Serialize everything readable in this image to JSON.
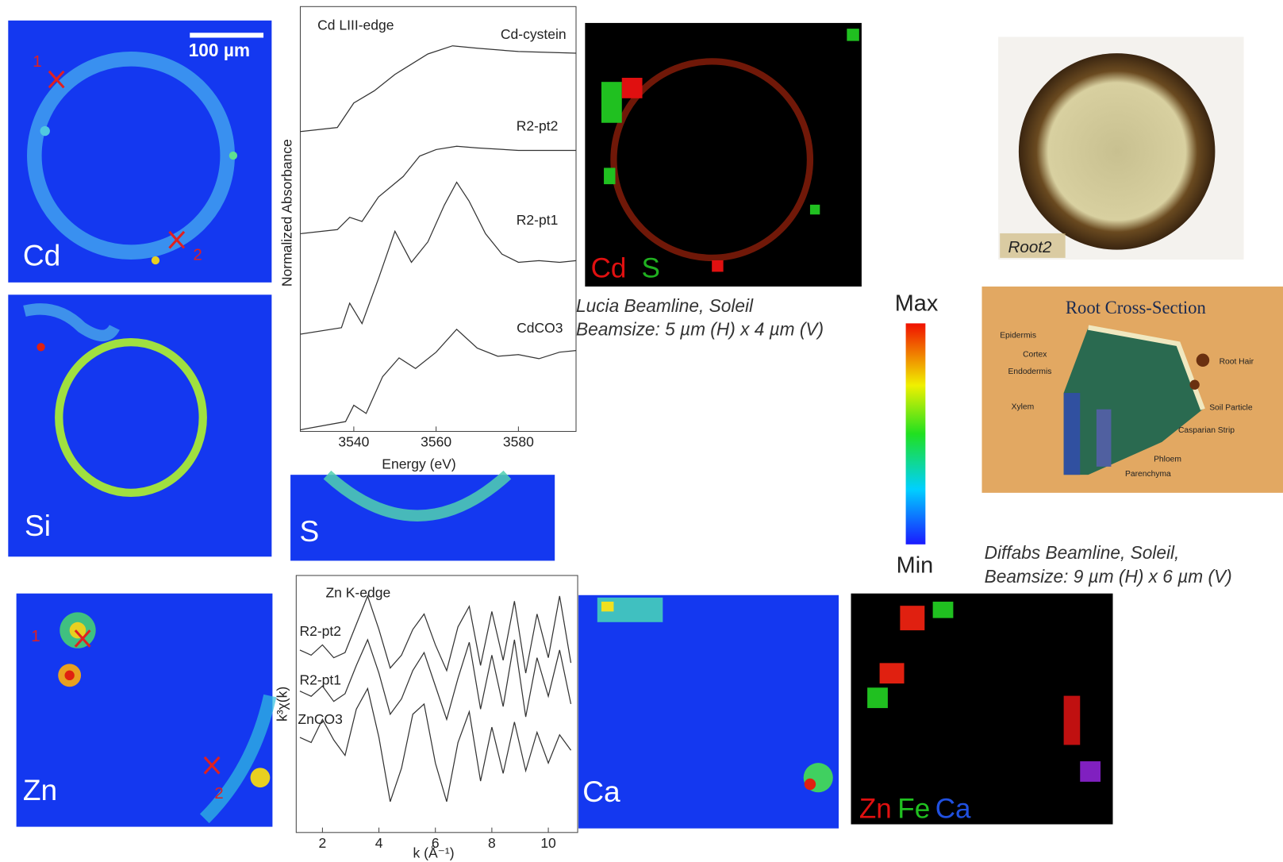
{
  "maps": {
    "cd": "Cd",
    "scale_bar": "100 µm",
    "cd_points": [
      "1",
      "2"
    ],
    "si": "Si",
    "s": "S",
    "zn": "Zn",
    "zn_points": [
      "1",
      "2"
    ],
    "ca": "Ca",
    "cd_s_rgb": [
      "Cd",
      "S"
    ],
    "zn_fe_ca_rgb": [
      "Zn",
      "Fe",
      "Ca"
    ]
  },
  "photo_label": "Root2",
  "lucia": [
    "Lucia Beamline, Soleil",
    "Beamsize: 5 µm (H) x 4 µm (V)"
  ],
  "diffabs": [
    "Diffabs Beamline, Soleil,",
    "Beamsize: 9 µm (H) x 6 µm (V)"
  ],
  "colorbar": {
    "max": "Max",
    "min": "Min"
  },
  "diagram": {
    "title": "Root Cross-Section",
    "labels": [
      "Epidermis",
      "Cortex",
      "Endodermis",
      "Xylem",
      "Root Hair",
      "Soil Particle",
      "Casparian Strip",
      "Phloem",
      "Parenchyma"
    ]
  },
  "chart_data": [
    {
      "type": "line",
      "title": "Cd LIII-edge",
      "x_label": "Energy (eV)",
      "y_label": "Normalized Absorbance",
      "xlim": [
        3527,
        3594
      ],
      "xticks": [
        3540,
        3560,
        3580
      ],
      "ylim": [
        0,
        5.2
      ],
      "series": [
        {
          "name": "Cd-cystein",
          "color": "#333333",
          "x": [
            3527,
            3536,
            3540,
            3545,
            3550,
            3558,
            3564,
            3570,
            3580,
            3594
          ],
          "values": [
            3.67,
            3.72,
            4.02,
            4.17,
            4.37,
            4.62,
            4.72,
            4.69,
            4.65,
            4.63
          ]
        },
        {
          "name": "R2-pt2",
          "color": "#333333",
          "x": [
            3527,
            3536,
            3539,
            3542,
            3546,
            3552,
            3556,
            3560,
            3565,
            3570,
            3580,
            3594
          ],
          "values": [
            2.42,
            2.47,
            2.62,
            2.57,
            2.87,
            3.12,
            3.37,
            3.45,
            3.49,
            3.47,
            3.44,
            3.44
          ]
        },
        {
          "name": "R2-pt1",
          "color": "#333333",
          "x": [
            3527,
            3537,
            3539,
            3542,
            3546,
            3550,
            3554,
            3558,
            3562,
            3565,
            3568,
            3572,
            3576,
            3580,
            3585,
            3590,
            3594
          ],
          "values": [
            1.19,
            1.27,
            1.57,
            1.32,
            1.87,
            2.45,
            2.07,
            2.32,
            2.77,
            3.05,
            2.82,
            2.42,
            2.17,
            2.07,
            2.09,
            2.07,
            2.09
          ]
        },
        {
          "name": "CdCO3",
          "color": "#333333",
          "x": [
            3527,
            3538,
            3540,
            3543,
            3547,
            3551,
            3555,
            3560,
            3565,
            3570,
            3575,
            3580,
            3585,
            3590,
            3594
          ],
          "values": [
            0.02,
            0.12,
            0.32,
            0.22,
            0.67,
            0.9,
            0.77,
            0.97,
            1.25,
            1.02,
            0.92,
            0.94,
            0.89,
            0.97,
            0.99
          ]
        }
      ]
    },
    {
      "type": "line",
      "title": "Zn K-edge",
      "x_label": "k (Å⁻¹)",
      "y_label": "k³χ(k)",
      "xlim": [
        1.07,
        11.04
      ],
      "xticks": [
        2,
        4,
        6,
        8,
        10
      ],
      "ylim": [
        0,
        10
      ],
      "series": [
        {
          "name": "R2-pt2",
          "color": "#333333",
          "x": [
            1.2,
            1.6,
            2.0,
            2.4,
            2.8,
            3.2,
            3.6,
            4.0,
            4.4,
            4.8,
            5.2,
            5.6,
            6.0,
            6.4,
            6.8,
            7.2,
            7.6,
            8.0,
            8.4,
            8.8,
            9.2,
            9.6,
            10.0,
            10.4,
            10.8
          ],
          "values": [
            7.1,
            6.9,
            7.3,
            6.8,
            7.0,
            8.1,
            9.2,
            7.9,
            6.4,
            6.9,
            7.9,
            8.5,
            7.3,
            6.3,
            8.0,
            8.8,
            6.5,
            8.6,
            6.7,
            9.0,
            6.2,
            8.5,
            6.8,
            9.2,
            6.6
          ]
        },
        {
          "name": "R2-pt1",
          "color": "#333333",
          "x": [
            1.2,
            1.6,
            2.0,
            2.4,
            2.8,
            3.2,
            3.6,
            4.0,
            4.4,
            4.8,
            5.2,
            5.6,
            6.0,
            6.4,
            6.8,
            7.2,
            7.6,
            8.0,
            8.4,
            8.8,
            9.2,
            9.6,
            10.0,
            10.4,
            10.8
          ],
          "values": [
            5.5,
            5.3,
            5.7,
            5.1,
            5.4,
            6.5,
            7.5,
            6.2,
            4.6,
            5.2,
            6.3,
            7.0,
            5.7,
            4.4,
            6.0,
            7.4,
            4.8,
            6.9,
            4.9,
            7.5,
            4.5,
            6.8,
            5.3,
            7.1,
            5.0
          ]
        },
        {
          "name": "ZnCO3",
          "color": "#333333",
          "x": [
            1.2,
            1.6,
            2.0,
            2.4,
            2.8,
            3.2,
            3.6,
            4.0,
            4.4,
            4.8,
            5.2,
            5.6,
            6.0,
            6.4,
            6.8,
            7.2,
            7.6,
            8.0,
            8.4,
            8.8,
            9.2,
            9.6,
            10.0,
            10.4,
            10.8
          ],
          "values": [
            3.7,
            3.5,
            4.4,
            3.6,
            3.0,
            4.8,
            5.6,
            3.7,
            1.2,
            2.5,
            4.6,
            5.0,
            2.7,
            1.2,
            3.5,
            4.7,
            2.0,
            4.1,
            2.3,
            4.3,
            2.4,
            3.9,
            2.7,
            3.8,
            3.2
          ]
        }
      ]
    }
  ]
}
